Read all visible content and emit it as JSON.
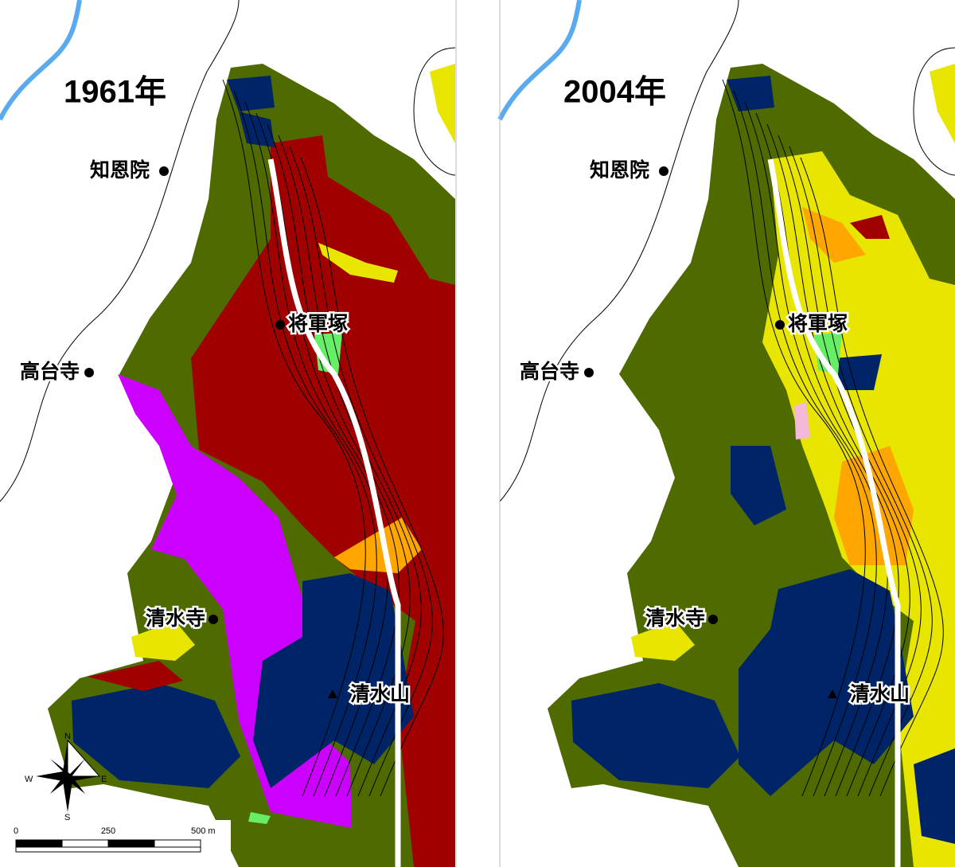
{
  "panels": [
    {
      "year": "1961年",
      "places": [
        "知恩院",
        "将軍塚",
        "高台寺",
        "清水寺",
        "清水山"
      ]
    },
    {
      "year": "2004年",
      "places": [
        "知恩院",
        "将軍塚",
        "高台寺",
        "清水寺",
        "清水山"
      ]
    }
  ],
  "scale_bar": {
    "labels": [
      "0",
      "250",
      "500 m"
    ]
  },
  "compass": {
    "n": "N",
    "s": "S",
    "e": "E",
    "w": "W"
  }
}
